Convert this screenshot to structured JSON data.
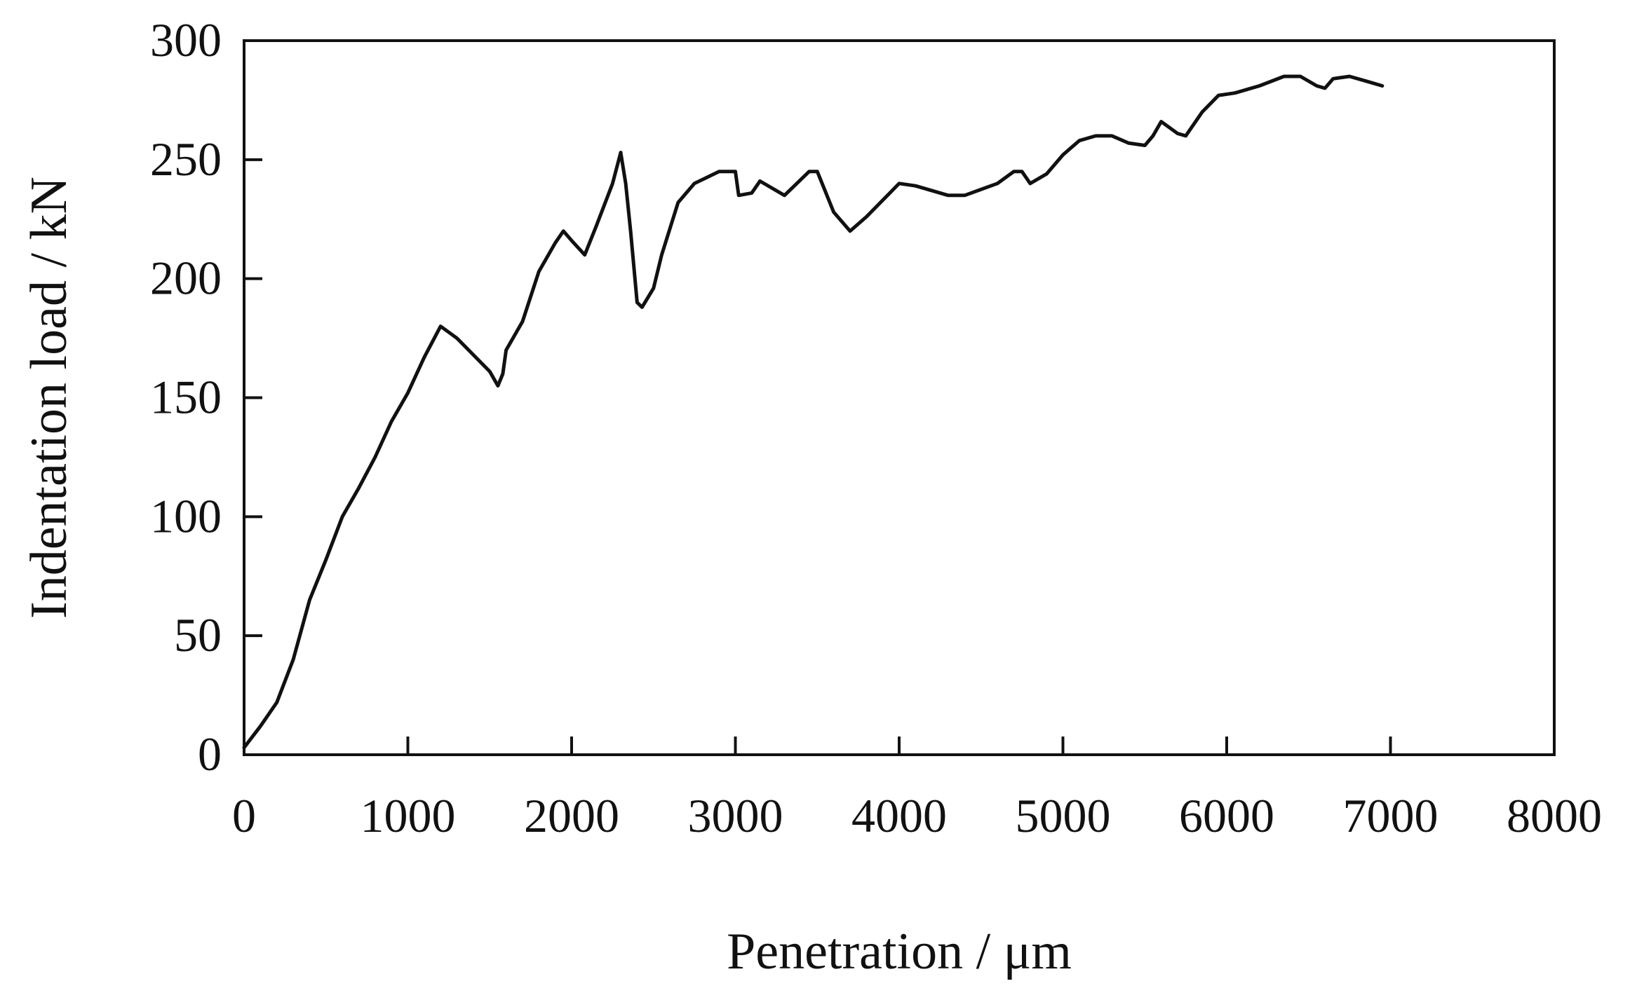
{
  "chart_data": {
    "type": "line",
    "title": "",
    "xlabel": "Penetration / μm",
    "ylabel": "Indentation load / kN",
    "xlim": [
      0,
      8000
    ],
    "ylim": [
      0,
      300
    ],
    "xticks": [
      0,
      1000,
      2000,
      3000,
      4000,
      5000,
      6000,
      7000,
      8000
    ],
    "yticks": [
      0,
      50,
      100,
      150,
      200,
      250,
      300
    ],
    "grid": false,
    "legend": "none",
    "colors": {
      "line": "#111111",
      "frame": "#111111"
    },
    "series": [
      {
        "x": [
          0,
          100,
          200,
          300,
          400,
          500,
          600,
          700,
          800,
          900,
          1000,
          1100,
          1200,
          1300,
          1400,
          1500,
          1550,
          1580,
          1600,
          1650,
          1700,
          1800,
          1900,
          1950,
          2000,
          2080,
          2150,
          2250,
          2300,
          2330,
          2360,
          2400,
          2430,
          2500,
          2550,
          2650,
          2750,
          2900,
          3000,
          3020,
          3100,
          3150,
          3300,
          3450,
          3500,
          3600,
          3700,
          3800,
          4000,
          4100,
          4300,
          4400,
          4600,
          4700,
          4750,
          4800,
          4900,
          5000,
          5100,
          5200,
          5300,
          5400,
          5500,
          5550,
          5600,
          5700,
          5750,
          5850,
          5950,
          6050,
          6200,
          6350,
          6450,
          6550,
          6600,
          6650,
          6750,
          6850,
          6950
        ],
        "y": [
          3,
          12,
          22,
          40,
          65,
          82,
          100,
          112,
          125,
          140,
          152,
          167,
          180,
          175,
          168,
          161,
          155,
          160,
          170,
          176,
          182,
          203,
          215,
          220,
          216,
          210,
          222,
          240,
          253,
          240,
          220,
          190,
          188,
          196,
          210,
          232,
          240,
          245,
          245,
          235,
          236,
          241,
          235,
          245,
          245,
          228,
          220,
          226,
          240,
          239,
          235,
          235,
          240,
          245,
          245,
          240,
          244,
          252,
          258,
          260,
          260,
          257,
          256,
          260,
          266,
          261,
          260,
          270,
          277,
          278,
          281,
          285,
          285,
          281,
          280,
          284,
          285,
          283,
          281
        ]
      }
    ]
  }
}
